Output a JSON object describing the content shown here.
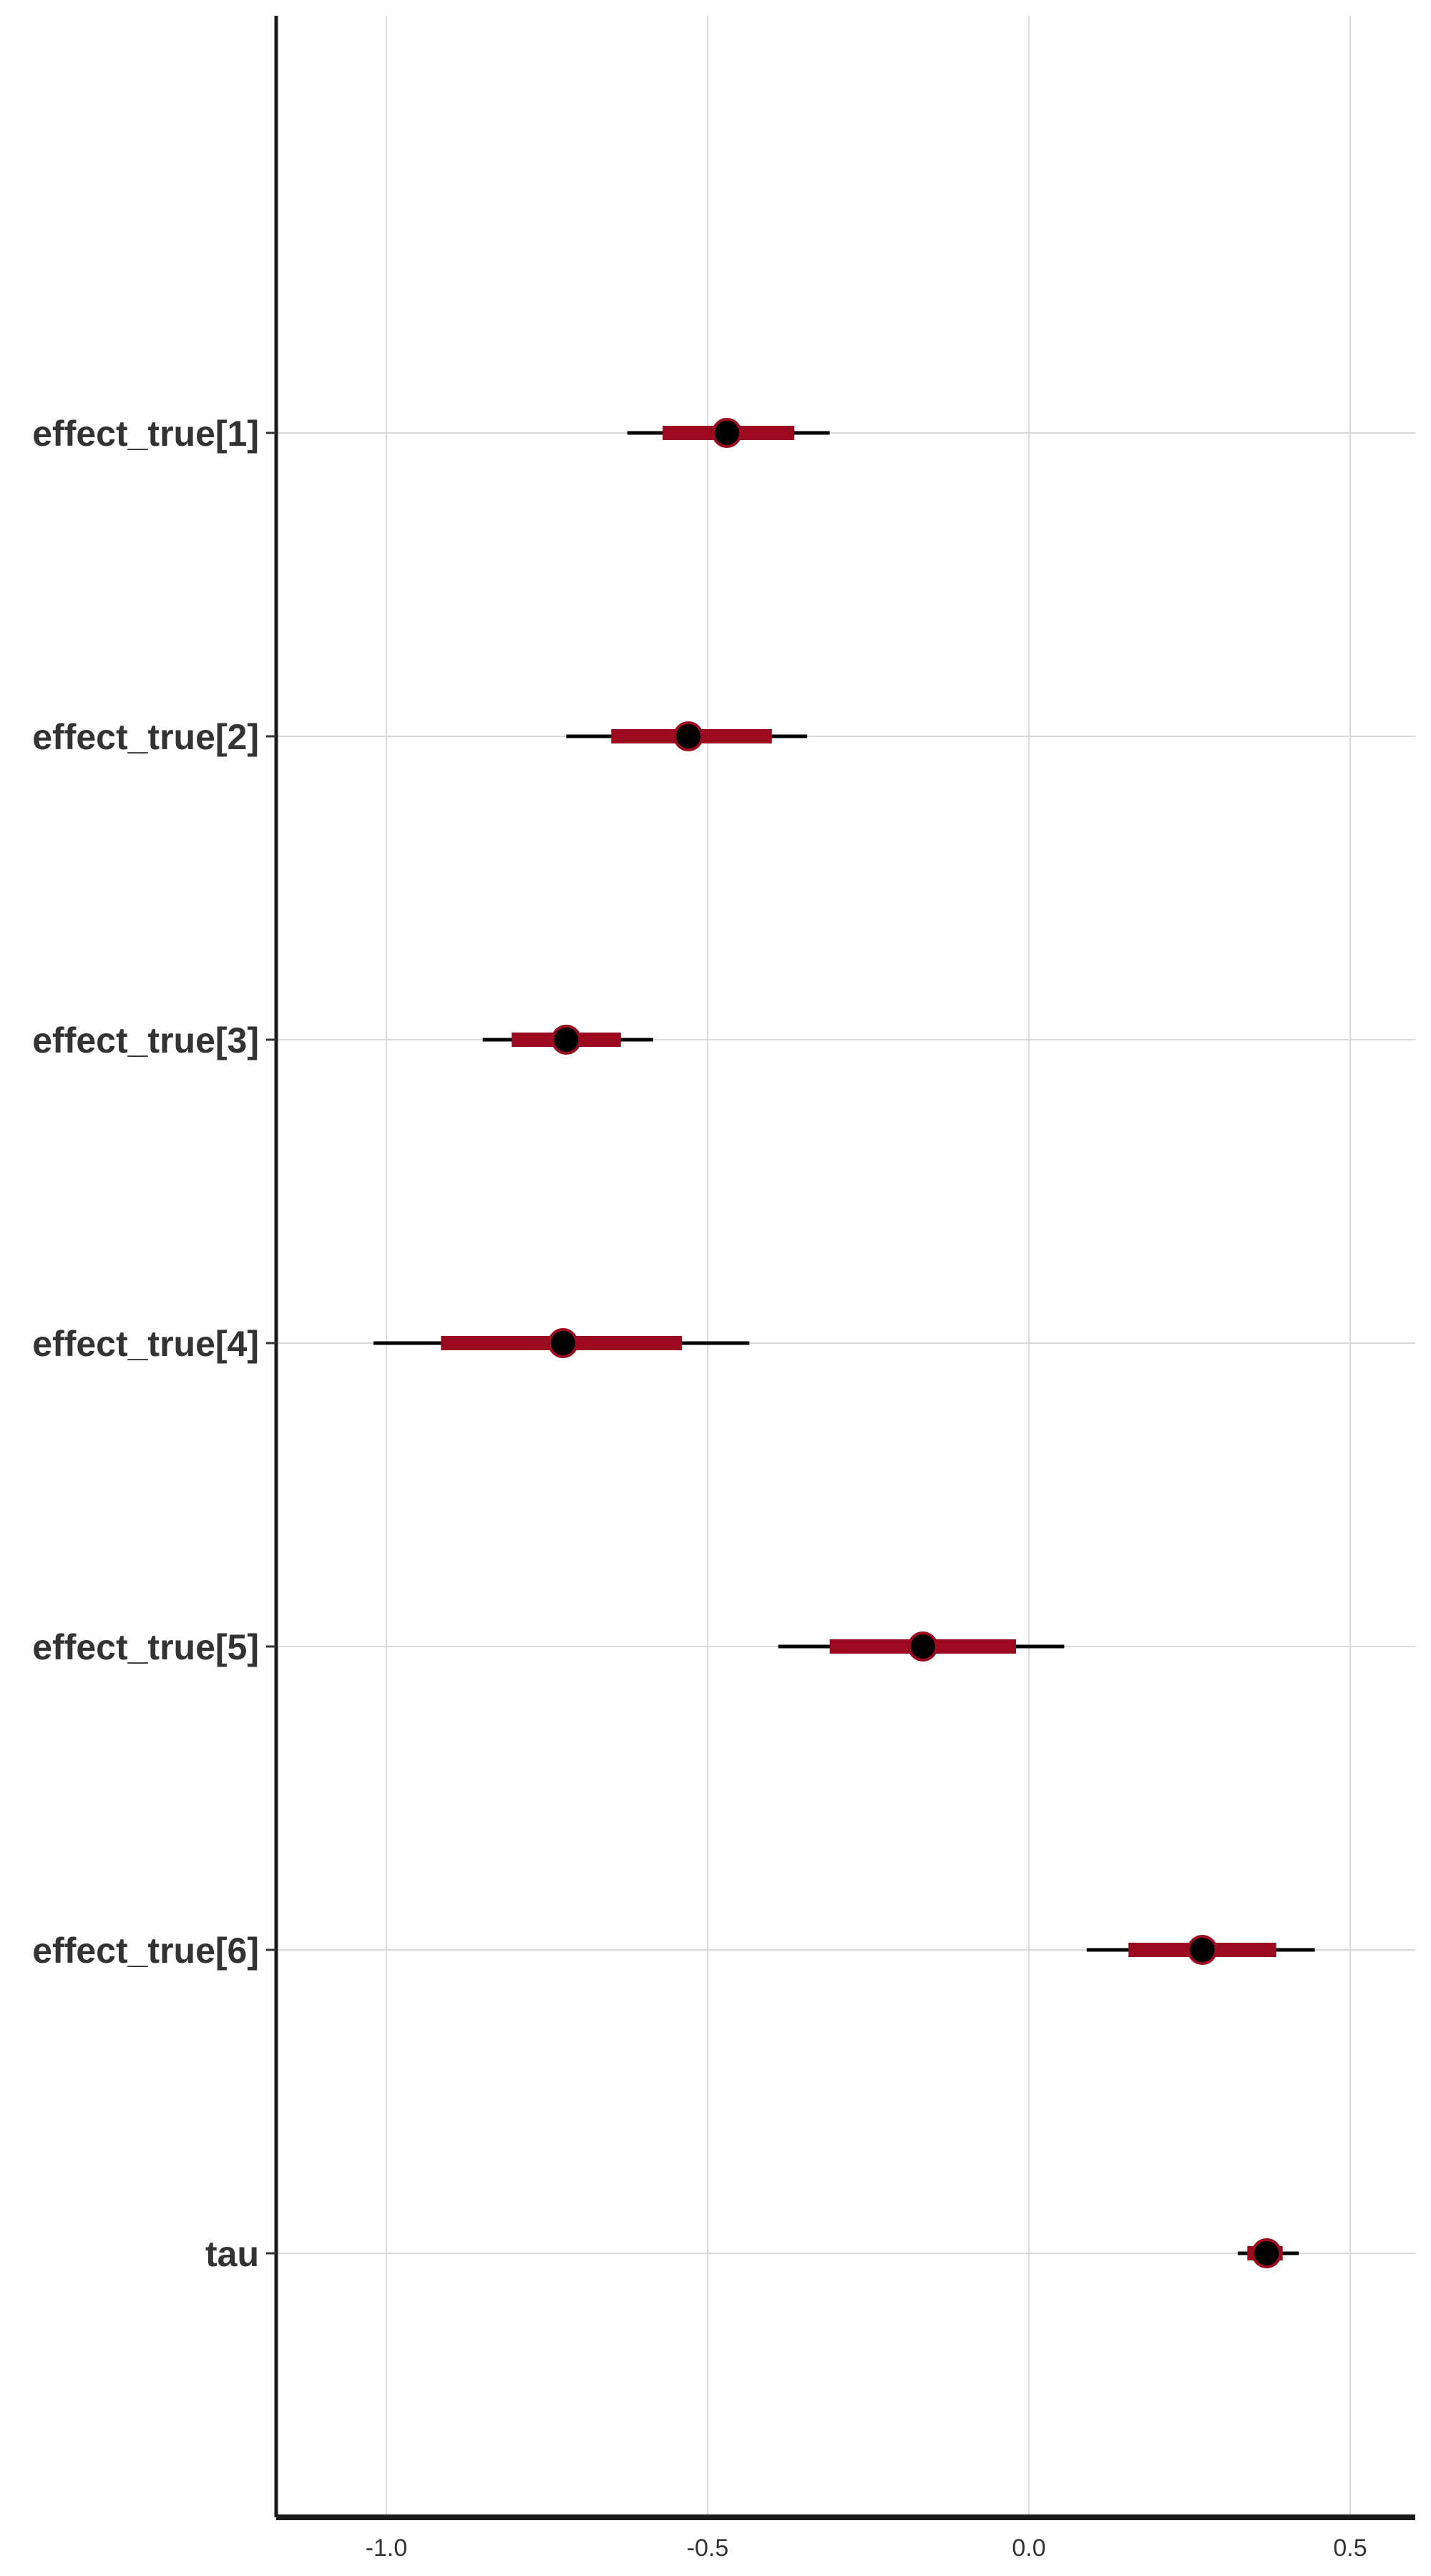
{
  "chart_data": {
    "type": "interval",
    "title": "",
    "xlabel": "",
    "ylabel": "",
    "xlim": [
      -1.17,
      0.6
    ],
    "x_ticks": [
      -1.0,
      -0.5,
      0.0,
      0.5
    ],
    "x_tick_labels": [
      "-1.0",
      "-0.5",
      "0.0",
      "0.5"
    ],
    "grid": true,
    "colors": {
      "inner": "#9b0a1f",
      "outer": "#000000",
      "point": "#000000",
      "point_stroke": "#9b0a1f",
      "grid": "#d9d9d9"
    },
    "parameters": [
      {
        "label": "effect_true[1]",
        "point": -0.47,
        "inner": [
          -0.57,
          -0.365
        ],
        "outer": [
          -0.625,
          -0.31
        ]
      },
      {
        "label": "effect_true[2]",
        "point": -0.53,
        "inner": [
          -0.65,
          -0.4
        ],
        "outer": [
          -0.72,
          -0.345
        ]
      },
      {
        "label": "effect_true[3]",
        "point": -0.72,
        "inner": [
          -0.805,
          -0.635
        ],
        "outer": [
          -0.85,
          -0.585
        ]
      },
      {
        "label": "effect_true[4]",
        "point": -0.725,
        "inner": [
          -0.915,
          -0.54
        ],
        "outer": [
          -1.02,
          -0.435
        ]
      },
      {
        "label": "effect_true[5]",
        "point": -0.165,
        "inner": [
          -0.31,
          -0.02
        ],
        "outer": [
          -0.39,
          0.055
        ]
      },
      {
        "label": "effect_true[6]",
        "point": 0.27,
        "inner": [
          0.155,
          0.385
        ],
        "outer": [
          0.09,
          0.445
        ]
      },
      {
        "label": "tau",
        "point": 0.37,
        "inner": [
          0.34,
          0.395
        ],
        "outer": [
          0.325,
          0.42
        ]
      }
    ]
  }
}
